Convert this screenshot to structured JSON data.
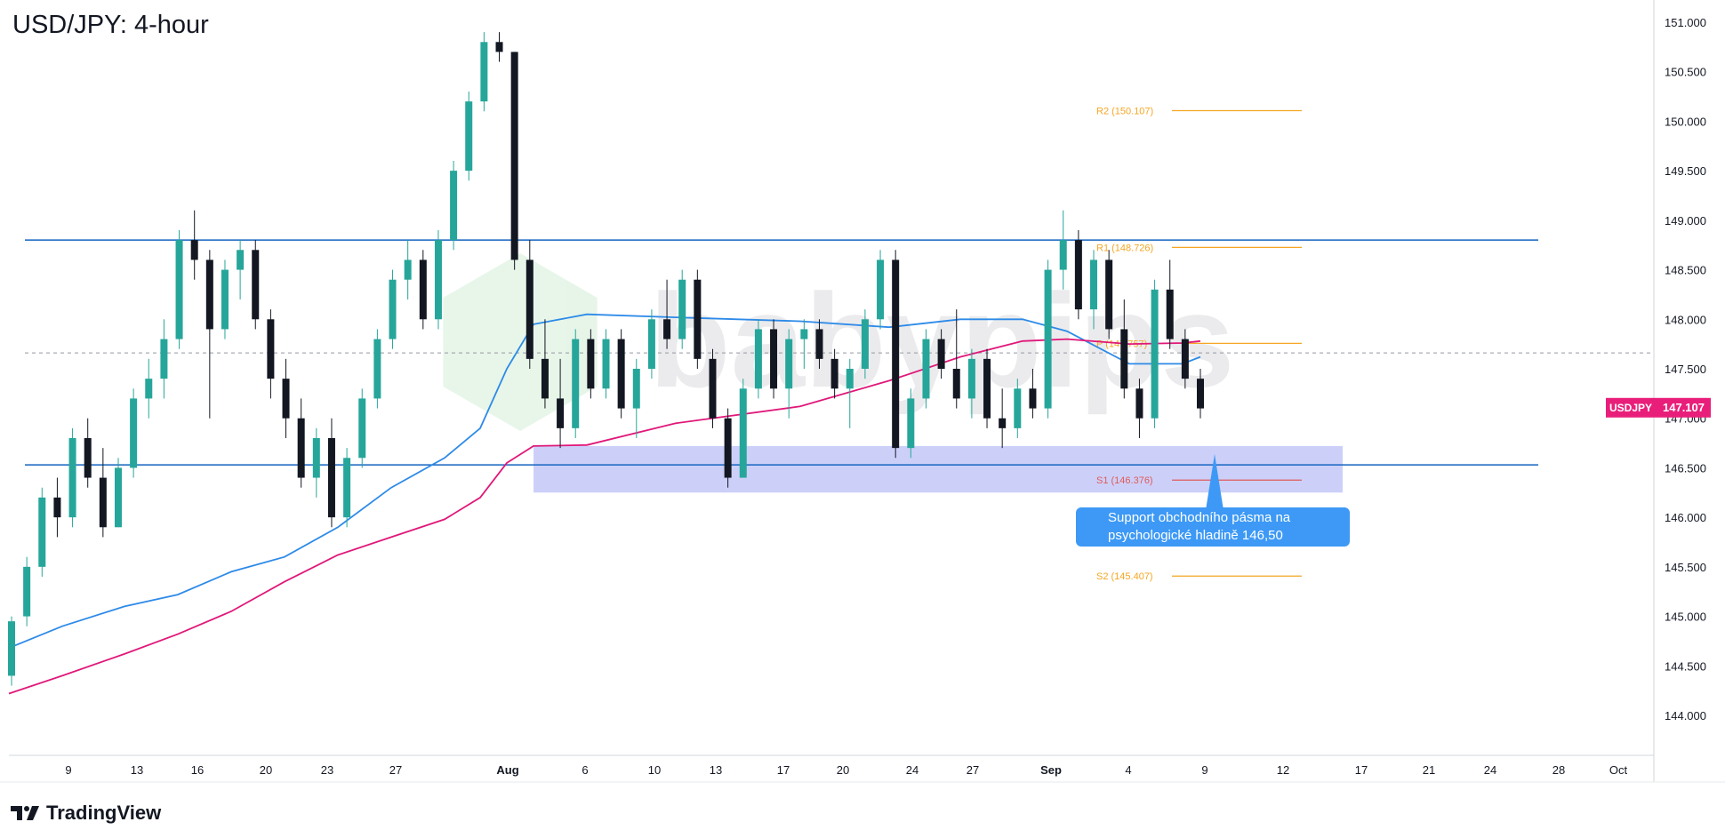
{
  "title": "USD/JPY: 4-hour",
  "footer": {
    "brand": "TradingView",
    "logo_icon": "tradingview-logo-icon"
  },
  "watermark": "babypips",
  "callout": {
    "text": "Support obchodního pásma na psychologické hladině 146,50"
  },
  "price_badge": {
    "symbol": "USDJPY",
    "price": "147.107",
    "color": "#e91e7a"
  },
  "colors": {
    "ema_fast": "#2d8ae8",
    "ema_slow": "#e0187a",
    "horizontal": "#1565c0",
    "pivot": "#f5a623",
    "s1": "#e05a5a",
    "zone": "#aab0f5",
    "up": "#26a69a",
    "down": "#131722"
  },
  "chart_data": {
    "type": "candlestick",
    "title": "USD/JPY: 4-hour",
    "y_ticks": [
      "151.000",
      "150.500",
      "150.000",
      "149.500",
      "149.000",
      "148.500",
      "148.000",
      "147.500",
      "147.000",
      "146.500",
      "146.000",
      "145.500",
      "145.000",
      "144.500",
      "144.000"
    ],
    "ylim": [
      143.6,
      151.3
    ],
    "x_ticks": [
      "9",
      "13",
      "16",
      "20",
      "23",
      "27",
      "Aug",
      "6",
      "10",
      "13",
      "17",
      "20",
      "24",
      "27",
      "Sep",
      "4",
      "9",
      "12",
      "17",
      "21",
      "24",
      "28",
      "Oct"
    ],
    "pivot_levels": [
      {
        "label": "R2 (150.107)",
        "value": 150.107
      },
      {
        "label": "R1 (148.726)",
        "value": 148.726
      },
      {
        "label": "P (147.757)",
        "value": 147.757
      },
      {
        "label": "S1 (146.376)",
        "value": 146.376
      },
      {
        "label": "S2 (145.407)",
        "value": 145.407
      }
    ],
    "horizontal_lines": [
      148.8,
      146.53
    ],
    "dashed_line": 147.66,
    "support_zone": [
      146.25,
      146.72
    ],
    "last_price": 147.107,
    "series": [
      {
        "name": "EMA fast",
        "values": [
          144.68,
          144.9,
          145.1,
          145.22,
          145.45,
          145.6,
          145.9,
          146.3,
          146.6,
          146.9,
          147.5,
          147.95,
          148.05,
          148.02,
          147.98,
          147.92,
          148.0,
          148.0,
          147.88,
          147.55,
          147.55,
          147.62
        ]
      },
      {
        "name": "EMA slow",
        "values": [
          144.22,
          144.4,
          144.62,
          144.82,
          145.05,
          145.35,
          145.62,
          145.8,
          145.98,
          146.2,
          146.55,
          146.72,
          146.73,
          146.95,
          147.12,
          147.38,
          147.62,
          147.78,
          147.8,
          147.75,
          147.76,
          147.78
        ]
      }
    ],
    "grid": true,
    "legend": "none"
  }
}
